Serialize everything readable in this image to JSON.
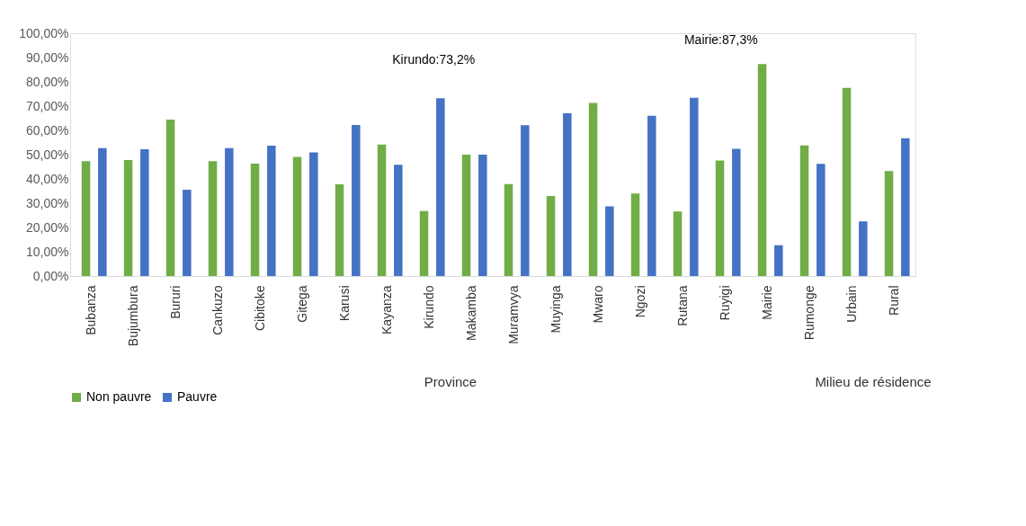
{
  "chart_data": {
    "type": "bar",
    "categories": [
      "Bubanza",
      "Bujumbura",
      "Bururi",
      "Cankuzo",
      "Cibitoke",
      "Gitega",
      "Karusi",
      "Kayanza",
      "Kirundo",
      "Makamba",
      "Muramvya",
      "Muyinga",
      "Mwaro",
      "Ngozi",
      "Rutana",
      "Ruyigi",
      "Mairie",
      "Rumonge",
      "Urbain",
      "Rural"
    ],
    "series": [
      {
        "name": "Non pauvre",
        "color": "#70ad47",
        "values": [
          47.3,
          47.8,
          64.4,
          47.3,
          46.3,
          49.1,
          37.8,
          54.2,
          26.8,
          50.0,
          37.9,
          33.0,
          71.3,
          34.0,
          26.6,
          47.6,
          87.3,
          53.8,
          77.5,
          43.2
        ]
      },
      {
        "name": "Pauvre",
        "color": "#4472c4",
        "values": [
          52.7,
          52.2,
          35.6,
          52.7,
          53.7,
          50.9,
          62.2,
          45.8,
          73.2,
          50.0,
          62.1,
          67.0,
          28.7,
          66.0,
          73.4,
          52.4,
          12.7,
          46.2,
          22.5,
          56.8
        ]
      }
    ],
    "ylim": [
      0,
      100
    ],
    "yticks": [
      {
        "value": 0,
        "label": "0,00%"
      },
      {
        "value": 10,
        "label": "10,00%"
      },
      {
        "value": 20,
        "label": "20,00%"
      },
      {
        "value": 30,
        "label": "30,00%"
      },
      {
        "value": 40,
        "label": "40,00%"
      },
      {
        "value": 50,
        "label": "50,00%"
      },
      {
        "value": 60,
        "label": "60,00%"
      },
      {
        "value": 70,
        "label": "70,00%"
      },
      {
        "value": 80,
        "label": "80,00%"
      },
      {
        "value": 90,
        "label": "90,00%"
      },
      {
        "value": 100,
        "label": "100,00%"
      }
    ],
    "annotations": [
      "Kirundo:73,2%",
      "Mairie:87,3%",
      "Province",
      "Milieu de résidence"
    ],
    "grid": false,
    "legend": "bottom"
  }
}
